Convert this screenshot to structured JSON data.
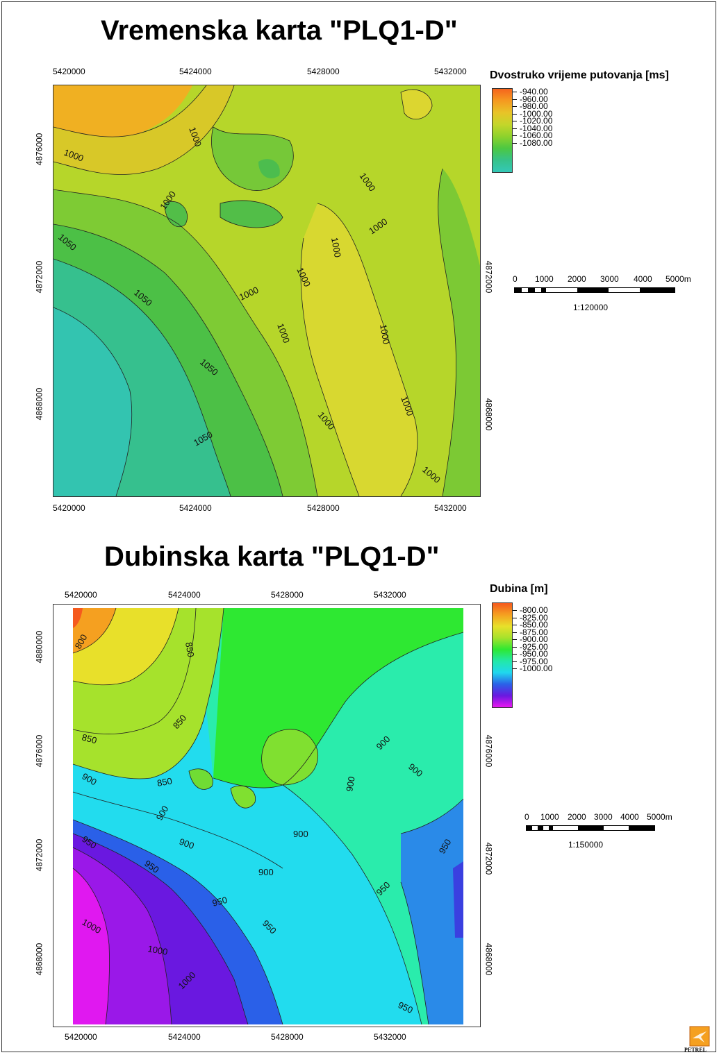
{
  "map1": {
    "title": "Vremenska karta \"PLQ1-D\"",
    "x_ticks": [
      "5420000",
      "5424000",
      "5428000",
      "5432000"
    ],
    "y_ticks": [
      "4876000",
      "4872000",
      "4868000"
    ],
    "legend_title": "Dvostruko vrijeme putovanja [ms]",
    "legend_values": [
      "-940.00",
      "-960.00",
      "-980.00",
      "-1000.00",
      "-1020.00",
      "-1040.00",
      "-1060.00",
      "-1080.00"
    ],
    "legend_colors": [
      "#f5641e",
      "#f59a20",
      "#e8c428",
      "#c4d62a",
      "#8ed22c",
      "#4cc842",
      "#36c28a",
      "#34c8b8"
    ],
    "contour_labels": [
      "1000",
      "1000",
      "1000",
      "1000",
      "1000",
      "1000",
      "1000",
      "1000",
      "1000",
      "1000",
      "1000",
      "1000",
      "1050",
      "1050",
      "1050",
      "1050"
    ],
    "scale_labels": [
      "0",
      "1000",
      "2000",
      "3000",
      "4000",
      "5000m"
    ],
    "scale_ratio": "1:120000"
  },
  "map2": {
    "title": "Dubinska karta \"PLQ1-D\"",
    "x_ticks": [
      "5420000",
      "5424000",
      "5428000",
      "5432000"
    ],
    "y_ticks": [
      "4880000",
      "4876000",
      "4872000",
      "4868000"
    ],
    "legend_title": "Dubina [m]",
    "legend_values": [
      "-800.00",
      "-825.00",
      "-850.00",
      "-875.00",
      "-900.00",
      "-925.00",
      "-950.00",
      "-975.00",
      "-1000.00"
    ],
    "legend_colors": [
      "#f55a1e",
      "#f5a020",
      "#e8e02a",
      "#a6e22c",
      "#2ee832",
      "#22e8a8",
      "#20d8ee",
      "#2a62e8",
      "#6a18e0",
      "#e818f0"
    ],
    "contour_labels": [
      "800",
      "850",
      "850",
      "850",
      "850",
      "900",
      "900",
      "900",
      "900",
      "900",
      "900",
      "900",
      "900",
      "950",
      "950",
      "950",
      "950",
      "950",
      "950",
      "950",
      "1000",
      "1000",
      "1000"
    ],
    "scale_labels": [
      "0",
      "1000",
      "2000",
      "3000",
      "4000",
      "5000m"
    ],
    "scale_ratio": "1:150000"
  },
  "logo_text": "PETREL"
}
